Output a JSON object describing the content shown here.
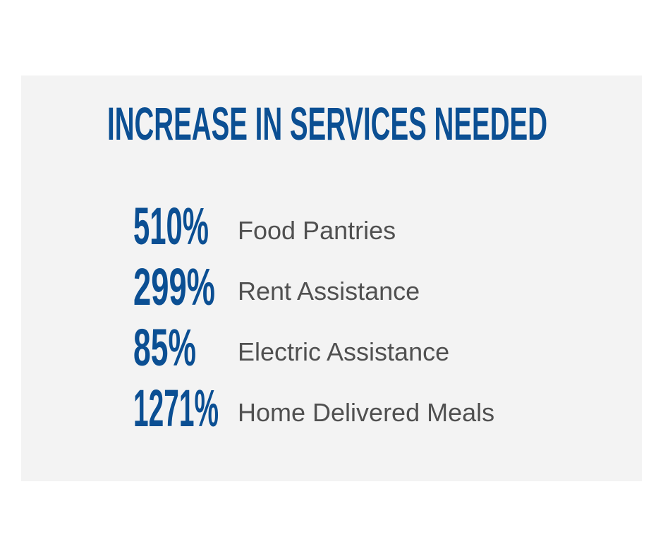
{
  "title": "INCREASE IN SERVICES NEEDED",
  "items": [
    {
      "value": "510%",
      "label": "Food Pantries"
    },
    {
      "value": "299%",
      "label": "Rent Assistance"
    },
    {
      "value": "85%",
      "label": "Electric Assistance"
    },
    {
      "value": "1271%",
      "label": "Home Delivered Meals"
    }
  ]
}
